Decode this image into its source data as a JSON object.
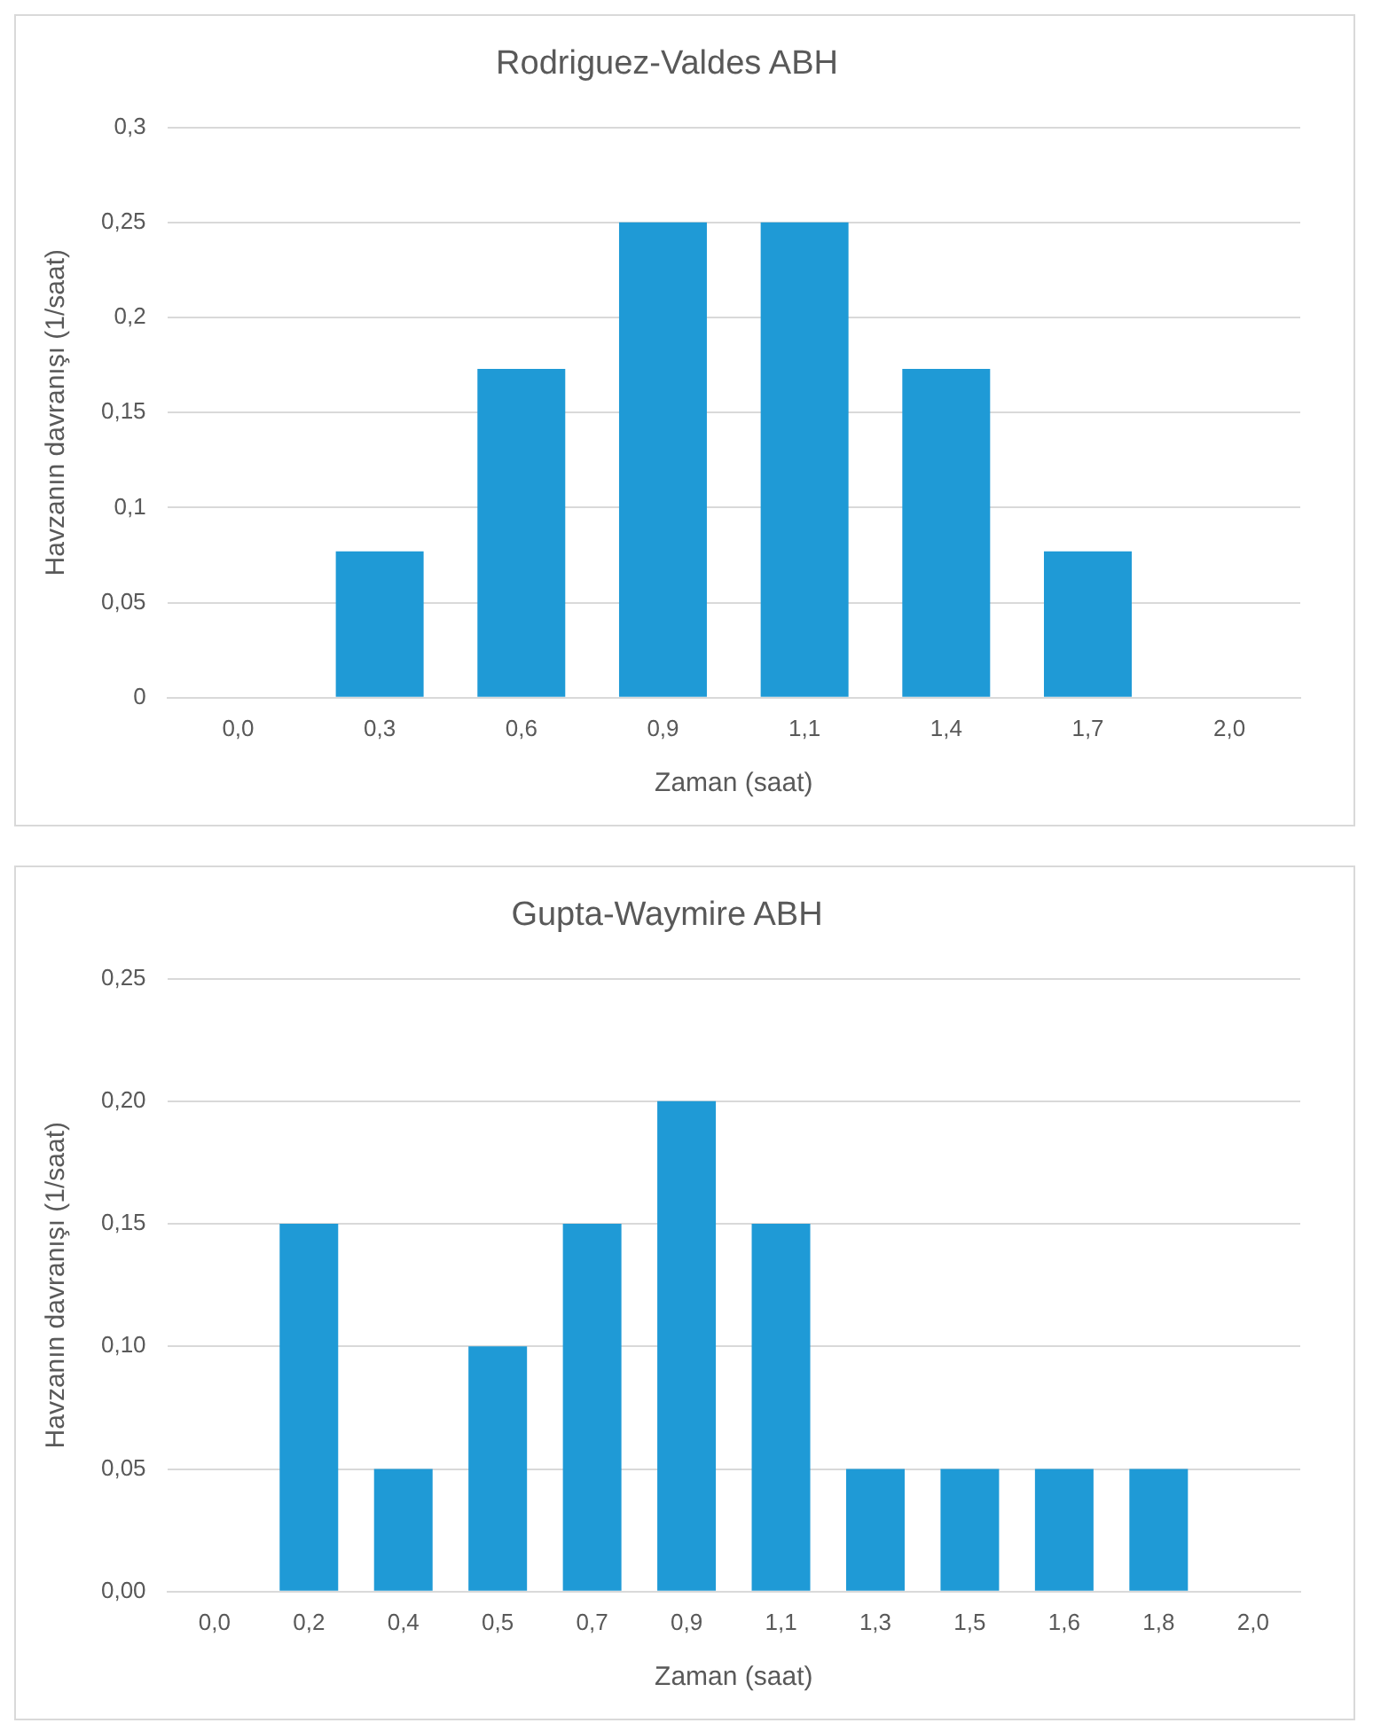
{
  "chart_data": [
    {
      "type": "bar",
      "title": "Rodriguez-Valdes ABH",
      "xlabel": "Zaman (saat)",
      "ylabel": "Havzanın davranışı (1/saat)",
      "categories": [
        "0,0",
        "0,3",
        "0,6",
        "0,9",
        "1,1",
        "1,4",
        "1,7",
        "2,0"
      ],
      "values": [
        0,
        0.077,
        0.173,
        0.25,
        0.25,
        0.173,
        0.077,
        0
      ],
      "color": "#1f9ad6",
      "ylim": [
        0,
        0.3
      ],
      "yticks": [
        0,
        {
          "value": 0.05,
          "label": "0,05"
        },
        {
          "value": 0.1,
          "label": "0,1"
        },
        {
          "value": 0.15,
          "label": "0,15"
        },
        {
          "value": 0.2,
          "label": "0,2"
        },
        {
          "value": 0.25,
          "label": "0,25"
        },
        {
          "value": 0.3,
          "label": "0,3"
        }
      ],
      "grid": "y",
      "legend": false
    },
    {
      "type": "bar",
      "title": "Gupta-Waymire ABH",
      "xlabel": "Zaman (saat)",
      "ylabel": "Havzanın davranışı (1/saat)",
      "categories": [
        "0,0",
        "0,2",
        "0,4",
        "0,5",
        "0,7",
        "0,9",
        "1,1",
        "1,3",
        "1,5",
        "1,6",
        "1,8",
        "2,0"
      ],
      "values": [
        0,
        0.15,
        0.05,
        0.1,
        0.15,
        0.2,
        0.15,
        0.05,
        0.05,
        0.05,
        0.05,
        0
      ],
      "color": "#1f9ad6",
      "ylim": [
        0,
        0.25
      ],
      "yticks": [
        {
          "value": 0,
          "label": "0,00"
        },
        {
          "value": 0.05,
          "label": "0,05"
        },
        {
          "value": 0.1,
          "label": "0,10"
        },
        {
          "value": 0.15,
          "label": "0,15"
        },
        {
          "value": 0.2,
          "label": "0,20"
        },
        {
          "value": 0.25,
          "label": "0,25"
        }
      ],
      "grid": "y",
      "legend": false
    }
  ]
}
